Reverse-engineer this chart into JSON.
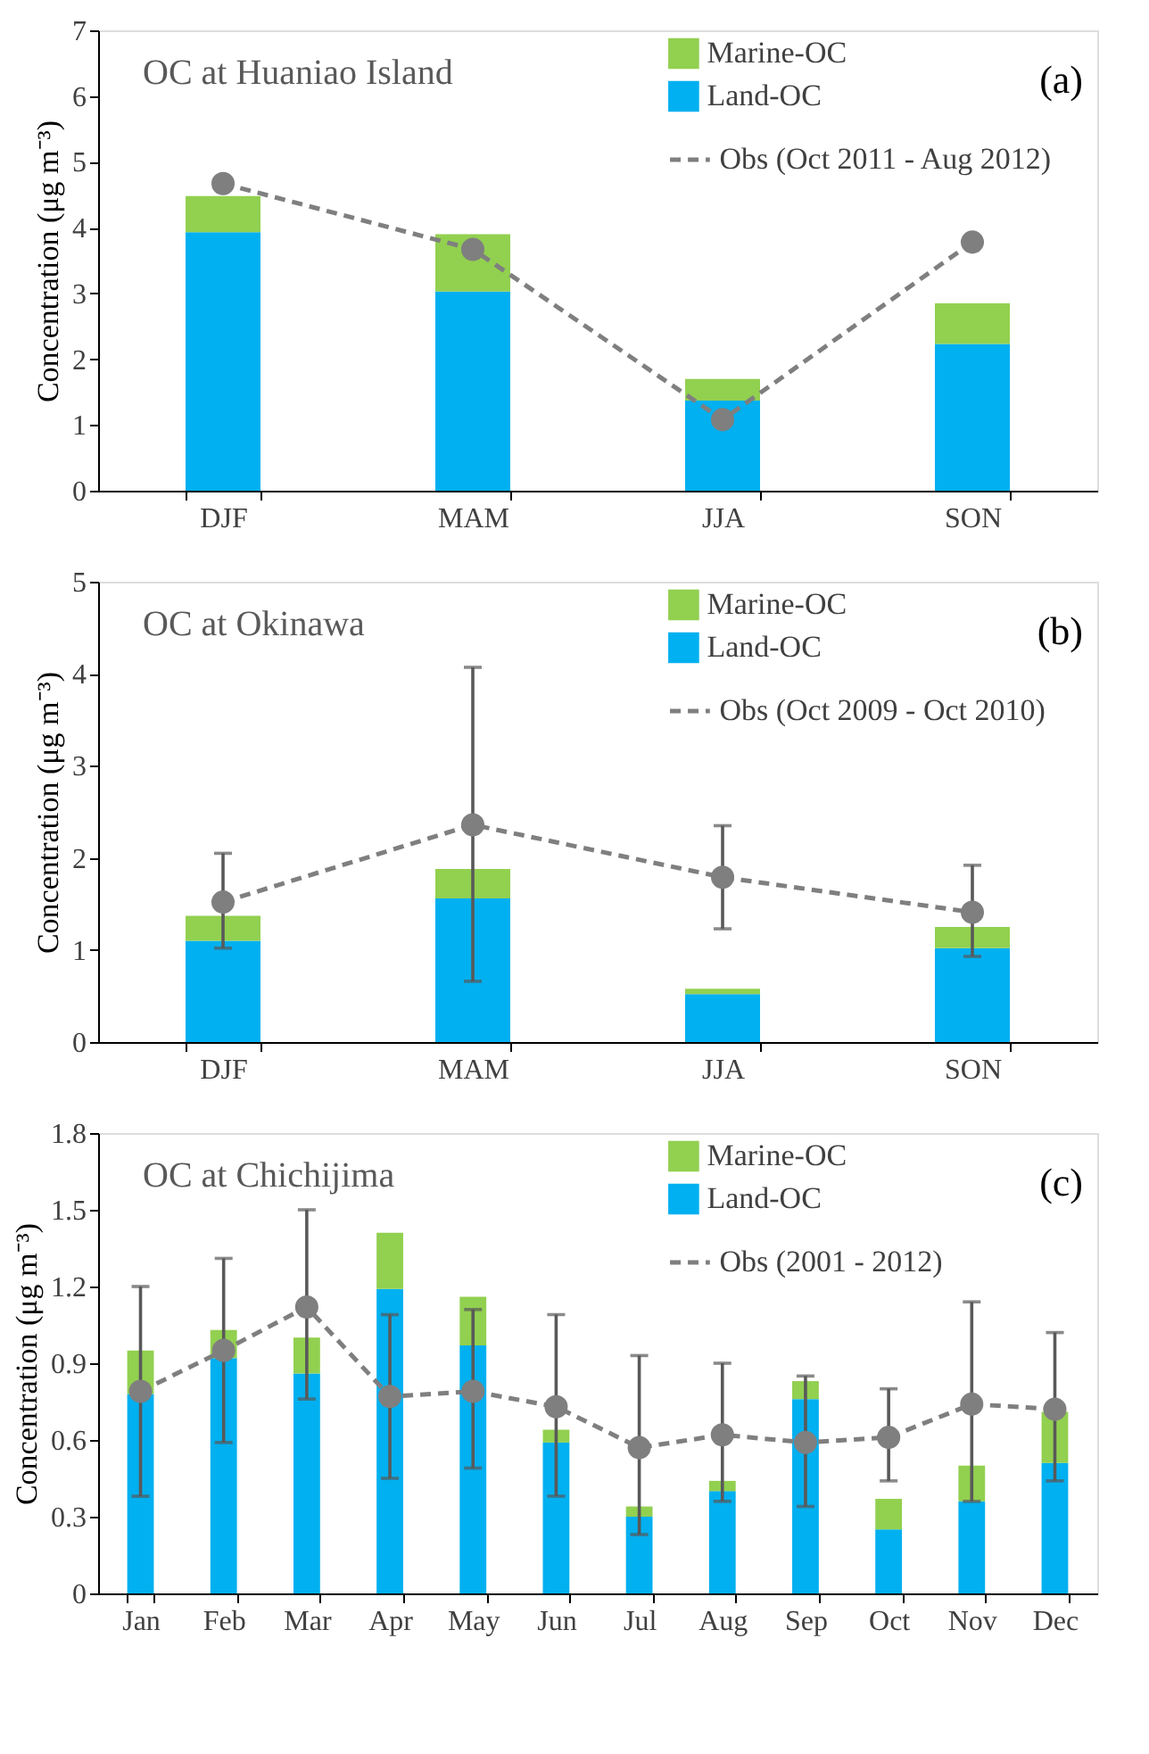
{
  "chart_data": [
    {
      "type": "bar",
      "title": "OC at Huaniao Island",
      "ylabel": "Concentration (μg m⁻³)",
      "annotations": [
        "(a)"
      ],
      "stacked": true,
      "legend": "top right",
      "marker": "circle",
      "line_style": "dashed",
      "categories": [
        "DJF",
        "MAM",
        "JJA",
        "SON"
      ],
      "ylim": [
        0,
        7
      ],
      "yticks": [
        0,
        1,
        2,
        3,
        4,
        5,
        6,
        7
      ],
      "series": [
        {
          "name": "Land-OC",
          "color": "#00b0f0",
          "values": [
            3.93,
            3.03,
            1.37,
            2.23
          ]
        },
        {
          "name": "Marine-OC",
          "color": "#92d050",
          "values": [
            0.55,
            0.87,
            0.33,
            0.62
          ]
        },
        {
          "name": "Obs (Oct 2011 - Aug 2012)",
          "type": "line",
          "color": "#7f7f7f",
          "values": [
            4.67,
            3.67,
            1.08,
            3.78
          ]
        }
      ]
    },
    {
      "type": "bar",
      "title": "OC at Okinawa",
      "ylabel": "Concentration (μg m⁻³)",
      "annotations": [
        "(b)"
      ],
      "stacked": true,
      "legend": "top right",
      "marker": "circle",
      "line_style": "dashed",
      "categories": [
        "DJF",
        "MAM",
        "JJA",
        "SON"
      ],
      "ylim": [
        0,
        5
      ],
      "yticks": [
        0,
        1,
        2,
        3,
        4,
        5
      ],
      "series": [
        {
          "name": "Land-OC",
          "color": "#00b0f0",
          "values": [
            1.1,
            1.56,
            0.52,
            1.02
          ]
        },
        {
          "name": "Marine-OC",
          "color": "#92d050",
          "values": [
            0.27,
            0.32,
            0.06,
            0.23
          ]
        },
        {
          "name": "Obs (Oct 2009 - Oct 2010)",
          "type": "line",
          "color": "#7f7f7f",
          "values": [
            1.52,
            2.36,
            1.79,
            1.41
          ],
          "errors": [
            [
              1.02,
              2.05
            ],
            [
              0.66,
              4.07
            ],
            [
              1.23,
              2.35
            ],
            [
              0.93,
              1.92
            ]
          ]
        }
      ]
    },
    {
      "type": "bar",
      "title": "OC at Chichijima",
      "ylabel": "Concentration (μg m⁻³)",
      "annotations": [
        "(c)"
      ],
      "stacked": true,
      "legend": "top right",
      "marker": "circle",
      "line_style": "dashed",
      "categories": [
        "Jan",
        "Feb",
        "Mar",
        "Apr",
        "May",
        "Jun",
        "Jul",
        "Aug",
        "Sep",
        "Oct",
        "Nov",
        "Dec"
      ],
      "ylim": [
        0,
        1.8
      ],
      "yticks": [
        0,
        0.3,
        0.6,
        0.9,
        1.2,
        1.5,
        1.8
      ],
      "series": [
        {
          "name": "Land-OC",
          "color": "#00b0f0",
          "values": [
            0.78,
            0.92,
            0.86,
            1.19,
            0.97,
            0.59,
            0.3,
            0.4,
            0.76,
            0.25,
            0.36,
            0.51
          ]
        },
        {
          "name": "Marine-OC",
          "color": "#92d050",
          "values": [
            0.17,
            0.11,
            0.14,
            0.22,
            0.19,
            0.05,
            0.04,
            0.04,
            0.07,
            0.12,
            0.14,
            0.2
          ]
        },
        {
          "name": "Obs (2001 - 2012)",
          "type": "line",
          "color": "#7f7f7f",
          "values": [
            0.79,
            0.95,
            1.12,
            0.77,
            0.79,
            0.73,
            0.57,
            0.62,
            0.59,
            0.61,
            0.74,
            0.72
          ],
          "errors": [
            [
              0.38,
              1.2
            ],
            [
              0.59,
              1.31
            ],
            [
              0.76,
              1.5
            ],
            [
              0.45,
              1.09
            ],
            [
              0.49,
              1.11
            ],
            [
              0.38,
              1.09
            ],
            [
              0.23,
              0.93
            ],
            [
              0.36,
              0.9
            ],
            [
              0.34,
              0.85
            ],
            [
              0.44,
              0.8
            ],
            [
              0.36,
              1.14
            ],
            [
              0.44,
              1.02
            ]
          ]
        }
      ]
    }
  ]
}
